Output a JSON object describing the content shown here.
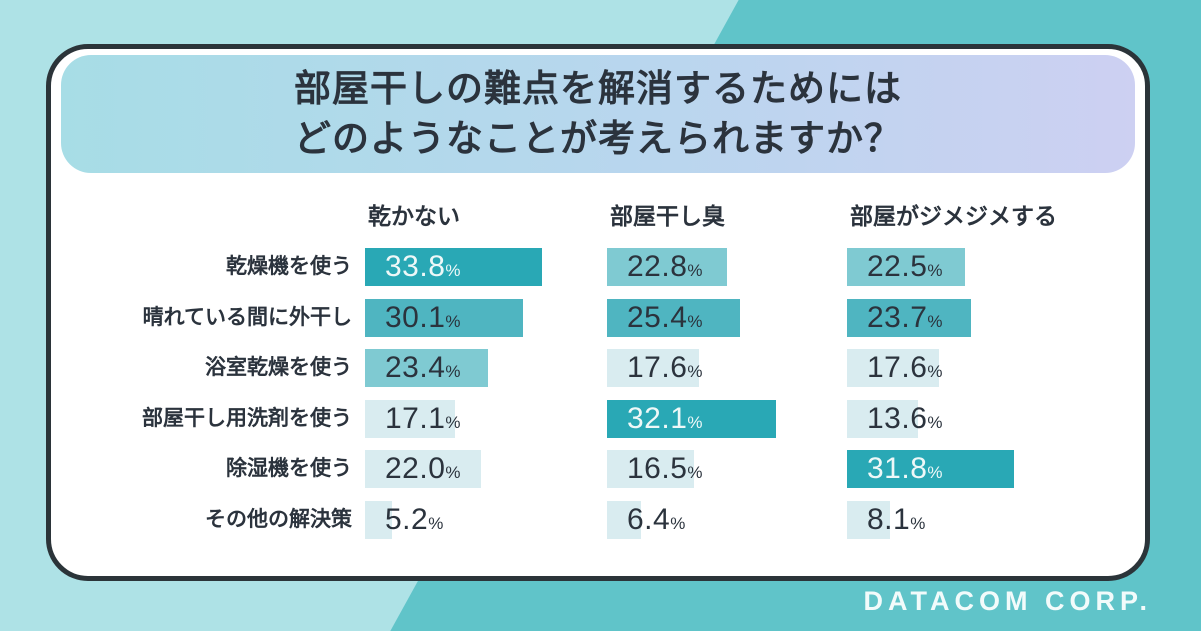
{
  "title": {
    "line1": "部屋干しの難点を解消するためには",
    "line2": "どのようなことが考えられますか？"
  },
  "footer": {
    "company": "DATACOM CORP."
  },
  "unit": "%",
  "colors": {
    "bg_left": "#aee2e6",
    "bg_right": "#60c4c9",
    "card_border": "#2b3439",
    "banner_gradient_left": "#a7dde6",
    "banner_gradient_right": "#cdd0f2",
    "bar_rank1": "#29a8b5",
    "bar_rank2": "#4fb5c1",
    "bar_rank3": "#7fcad2",
    "bar_pale": "#d9ecf0",
    "value_text_on_dark": "#eef8f8",
    "value_text_on_light": "#2b333d",
    "label_text": "#2b333d"
  },
  "chart_data": {
    "type": "bar",
    "title": "部屋干しの難点を解消するためには どのようなことが考えられますか？",
    "orientation": "horizontal",
    "unit": "%",
    "categories": [
      "乾燥機を使う",
      "晴れている間に外干し",
      "浴室乾燥を使う",
      "部屋干し用洗剤を使う",
      "除湿機を使う",
      "その他の解決策"
    ],
    "series": [
      {
        "name": "乾かない",
        "values": [
          33.8,
          30.1,
          23.4,
          17.1,
          22.0,
          5.2
        ]
      },
      {
        "name": "部屋干し臭",
        "values": [
          22.8,
          25.4,
          17.6,
          32.1,
          16.5,
          6.4
        ]
      },
      {
        "name": "部屋がジメジメする",
        "values": [
          22.5,
          23.7,
          17.6,
          13.6,
          31.8,
          8.1
        ]
      }
    ],
    "value_labels_shown": true,
    "axis_shown": false,
    "color_rule": "per column: highest value dark teal with white label, 2nd medium teal, 3rd light teal, remainder pale blue",
    "xlim": [
      0,
      35
    ]
  }
}
